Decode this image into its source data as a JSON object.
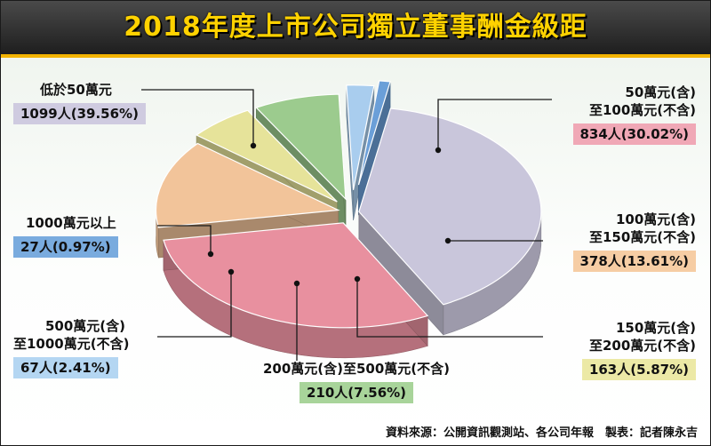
{
  "title": "2018年度上市公司獨立董事酬金級距",
  "source": "資料來源：公開資訊觀測站、各公司年報　製表：記者陳永吉",
  "chart_data": {
    "type": "pie",
    "title": "2018年度上市公司獨立董事酬金級距",
    "unit": "人",
    "slices": [
      {
        "label_line1": "低於50萬元",
        "label_line2": "",
        "count": 1099,
        "percent": 39.56,
        "value_text": "1099人(39.56%)",
        "color": "#c9c6db",
        "box_color": "#cfcbe0"
      },
      {
        "label_line1": "50萬元(含)",
        "label_line2": "至100萬元(不含)",
        "count": 834,
        "percent": 30.02,
        "value_text": "834人(30.02%)",
        "color": "#e8909f",
        "box_color": "#f0a8b6"
      },
      {
        "label_line1": "100萬元(含)",
        "label_line2": "至150萬元(不含)",
        "count": 378,
        "percent": 13.61,
        "value_text": "378人(13.61%)",
        "color": "#f2c49a",
        "box_color": "#f6cda4"
      },
      {
        "label_line1": "150萬元(含)",
        "label_line2": "至200萬元(不含)",
        "count": 163,
        "percent": 5.87,
        "value_text": "163人(5.87%)",
        "color": "#e6e39a",
        "box_color": "#ece9a6"
      },
      {
        "label_line1": "200萬元(含)至500萬元(不含)",
        "label_line2": "",
        "count": 210,
        "percent": 7.56,
        "value_text": "210人(7.56%)",
        "color": "#9ccb8e",
        "box_color": "#a8d49a"
      },
      {
        "label_line1": "500萬元(含)",
        "label_line2": "至1000萬元(不含)",
        "count": 67,
        "percent": 2.41,
        "value_text": "67人(2.41%)",
        "color": "#a9cdee",
        "box_color": "#b4d6f2"
      },
      {
        "label_line1": "1000萬元以上",
        "label_line2": "",
        "count": 27,
        "percent": 0.97,
        "value_text": "27人(0.97%)",
        "color": "#6b9fd8",
        "box_color": "#79abde"
      }
    ]
  }
}
